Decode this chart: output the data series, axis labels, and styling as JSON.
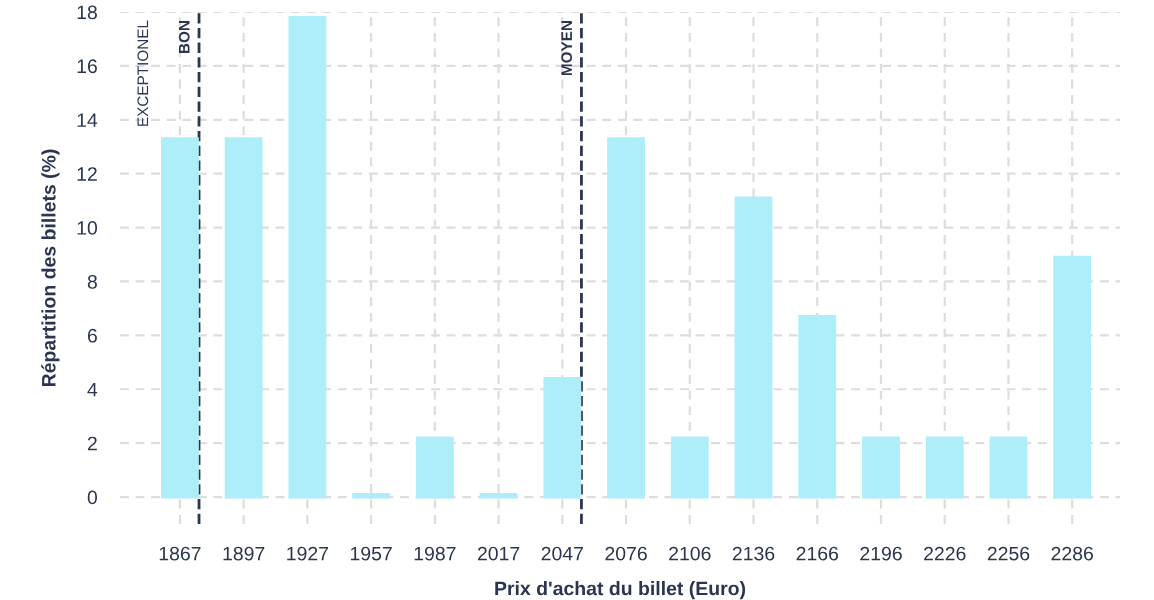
{
  "chart_data": {
    "type": "bar",
    "xlabel": "Prix d'achat du billet (Euro)",
    "ylabel": "Répartition des billets (%)",
    "categories": [
      "1867",
      "1897",
      "1927",
      "1957",
      "1987",
      "2017",
      "2047",
      "2076",
      "2106",
      "2136",
      "2166",
      "2196",
      "2226",
      "2256",
      "2286"
    ],
    "values": [
      13.3,
      13.3,
      17.8,
      0.1,
      2.2,
      0.1,
      4.4,
      13.3,
      2.2,
      11.1,
      6.7,
      2.2,
      2.2,
      2.2,
      8.9
    ],
    "color": "#aeeef8",
    "ylim": [
      -1,
      18
    ],
    "yticks": [
      0,
      2,
      4,
      6,
      8,
      10,
      12,
      14,
      16,
      18
    ],
    "grid": true,
    "ref_lines": [
      {
        "axis": "x",
        "value": "1867",
        "label": "BON",
        "color": "#2b3550",
        "line_style": "dashed"
      },
      {
        "axis": "x",
        "value": "2047",
        "label": "MOYEN",
        "color": "#2b3550",
        "line_style": "dashed"
      }
    ],
    "annotations": [
      "EXCEPTIONEL"
    ]
  }
}
